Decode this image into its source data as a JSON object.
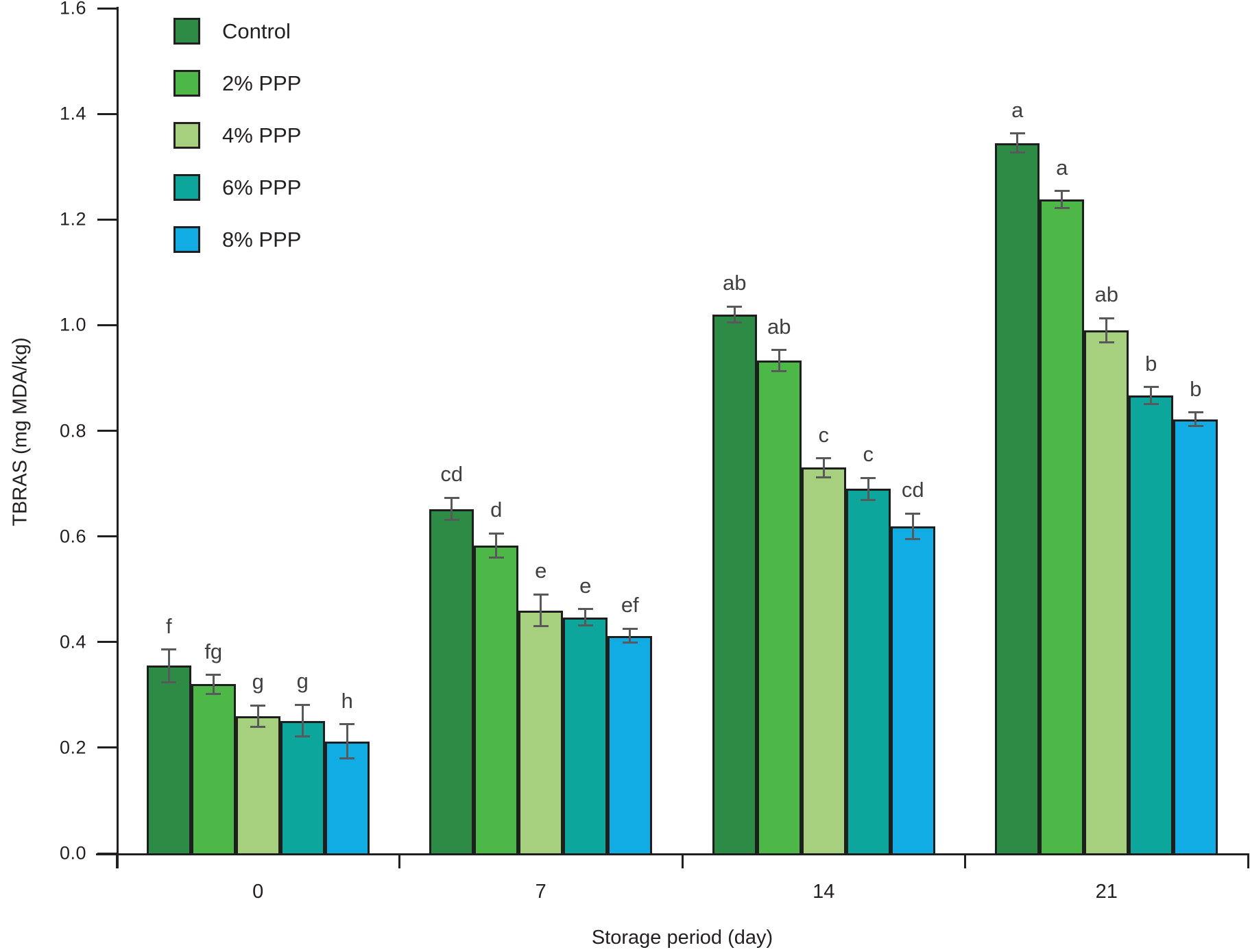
{
  "chart_data": {
    "type": "bar",
    "title": "",
    "xlabel": "Storage period (day)",
    "ylabel": "TBRAS (mg MDA/kg)",
    "categories": [
      "0",
      "7",
      "14",
      "21"
    ],
    "series": [
      {
        "name": "Control",
        "color": "#2e8b45",
        "values": [
          0.355,
          0.652,
          1.02,
          1.345
        ],
        "errors": [
          0.031,
          0.021,
          0.015,
          0.018
        ],
        "letters": [
          "f",
          "cd",
          "ab",
          "a"
        ]
      },
      {
        "name": "2% PPP",
        "color": "#4db848",
        "values": [
          0.32,
          0.583,
          0.933,
          1.238
        ],
        "errors": [
          0.018,
          0.023,
          0.02,
          0.016
        ],
        "letters": [
          "fg",
          "d",
          "ab",
          "a"
        ]
      },
      {
        "name": "4% PPP",
        "color": "#a6cf7e",
        "values": [
          0.26,
          0.46,
          0.73,
          0.99
        ],
        "errors": [
          0.02,
          0.03,
          0.018,
          0.023
        ],
        "letters": [
          "g",
          "e",
          "c",
          "ab"
        ]
      },
      {
        "name": "6% PPP",
        "color": "#0ca69c",
        "values": [
          0.251,
          0.447,
          0.69,
          0.867
        ],
        "errors": [
          0.03,
          0.015,
          0.021,
          0.016
        ],
        "letters": [
          "g",
          "e",
          "c",
          "b"
        ]
      },
      {
        "name": "8% PPP",
        "color": "#12ace4",
        "values": [
          0.212,
          0.412,
          0.619,
          0.822
        ],
        "errors": [
          0.032,
          0.013,
          0.024,
          0.013
        ],
        "letters": [
          "h",
          "ef",
          "cd",
          "b"
        ]
      }
    ],
    "y_ticks": [
      "0.0",
      "0.2",
      "0.4",
      "0.6",
      "0.8",
      "1.0",
      "1.2",
      "1.4",
      "1.6"
    ],
    "ylim": [
      0,
      1.6
    ],
    "grid": false,
    "error_bars": true,
    "legend_position": "top-left"
  },
  "style_colors": {
    "axis": "#231f20",
    "bar_border": "#1d1f1e",
    "error_bar": "#58595b",
    "letter": "#404042"
  }
}
